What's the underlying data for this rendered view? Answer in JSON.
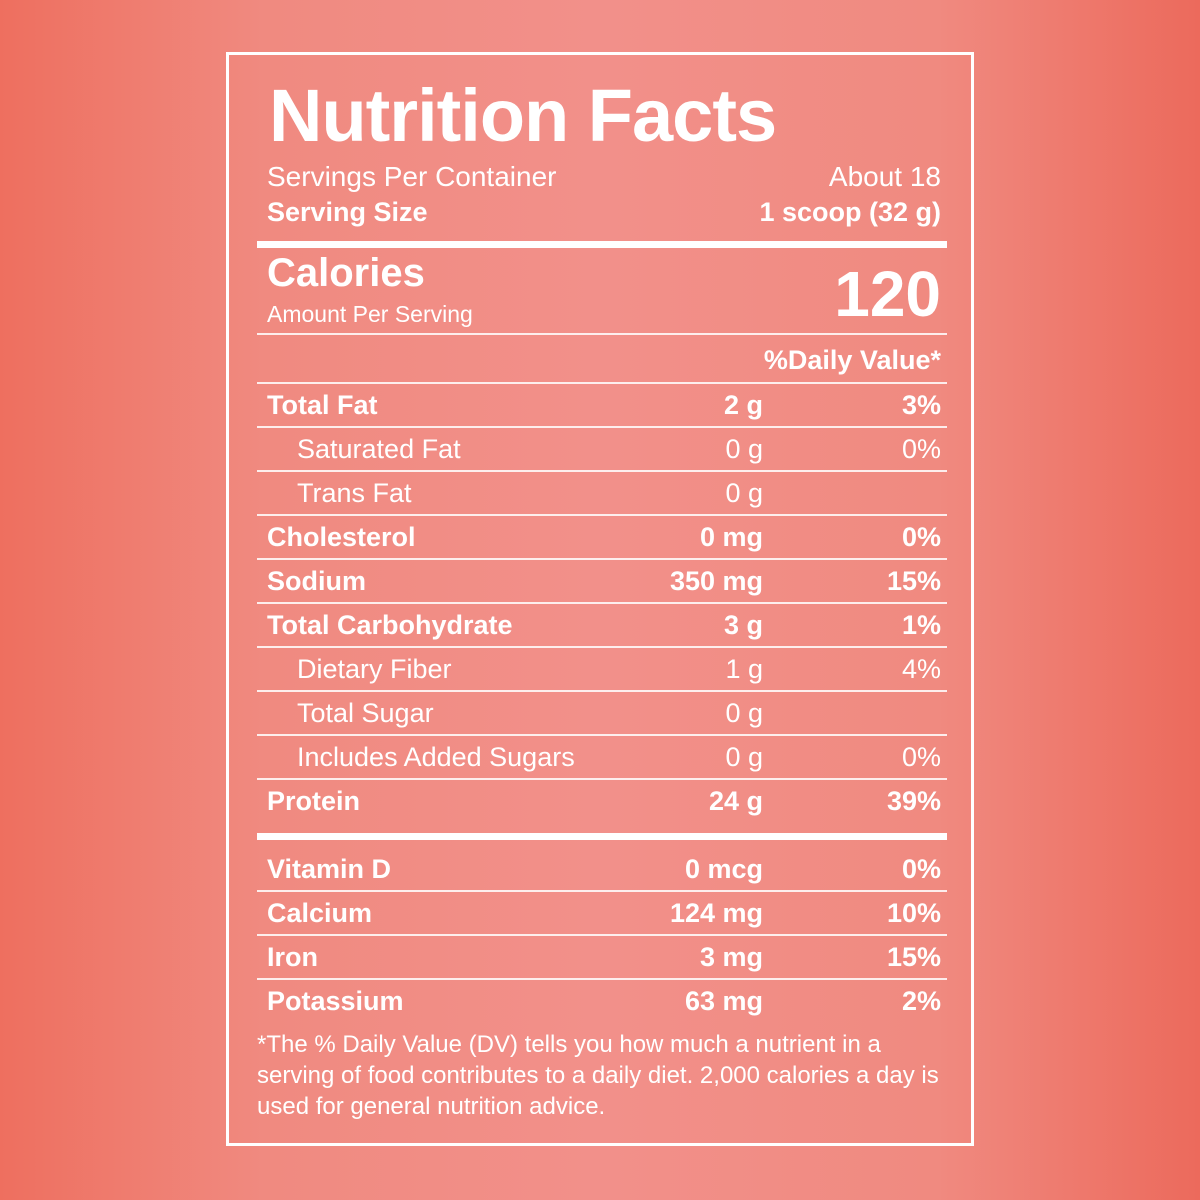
{
  "title": "Nutrition Facts",
  "servings": {
    "label": "Servings Per Container",
    "value": "About 18"
  },
  "serving_size": {
    "label": "Serving Size",
    "value": "1 scoop (32 g)"
  },
  "calories": {
    "label": "Calories",
    "sub_label": "Amount Per Serving",
    "value": "120"
  },
  "daily_value_header": "%Daily Value*",
  "nutrients": [
    {
      "name": "Total Fat",
      "amount": "2 g",
      "dv": "3%"
    },
    {
      "name": "Saturated Fat",
      "amount": "0 g",
      "dv": "0%"
    },
    {
      "name": "Trans Fat",
      "amount": "0 g",
      "dv": ""
    },
    {
      "name": "Cholesterol",
      "amount": "0 mg",
      "dv": "0%"
    },
    {
      "name": "Sodium",
      "amount": "350 mg",
      "dv": "15%"
    },
    {
      "name": "Total Carbohydrate",
      "amount": "3 g",
      "dv": "1%"
    },
    {
      "name": "Dietary Fiber",
      "amount": "1 g",
      "dv": "4%"
    },
    {
      "name": "Total Sugar",
      "amount": "0 g",
      "dv": ""
    },
    {
      "name": "Includes Added Sugars",
      "amount": "0 g",
      "dv": "0%"
    },
    {
      "name": "Protein",
      "amount": "24 g",
      "dv": "39%"
    }
  ],
  "vitamins": [
    {
      "name": "Vitamin D",
      "amount": "0 mcg",
      "dv": "0%"
    },
    {
      "name": "Calcium",
      "amount": "124 mg",
      "dv": "10%"
    },
    {
      "name": "Iron",
      "amount": "3 mg",
      "dv": "15%"
    },
    {
      "name": "Potassium",
      "amount": "63 mg",
      "dv": "2%"
    }
  ],
  "footnote": "*The % Daily Value (DV) tells you how much a nutrient in a serving of food contributes to a daily diet. 2,000 calories a day is used for general nutrition advice.",
  "colors": {
    "background": "#f0857b",
    "text": "#ffffff"
  }
}
